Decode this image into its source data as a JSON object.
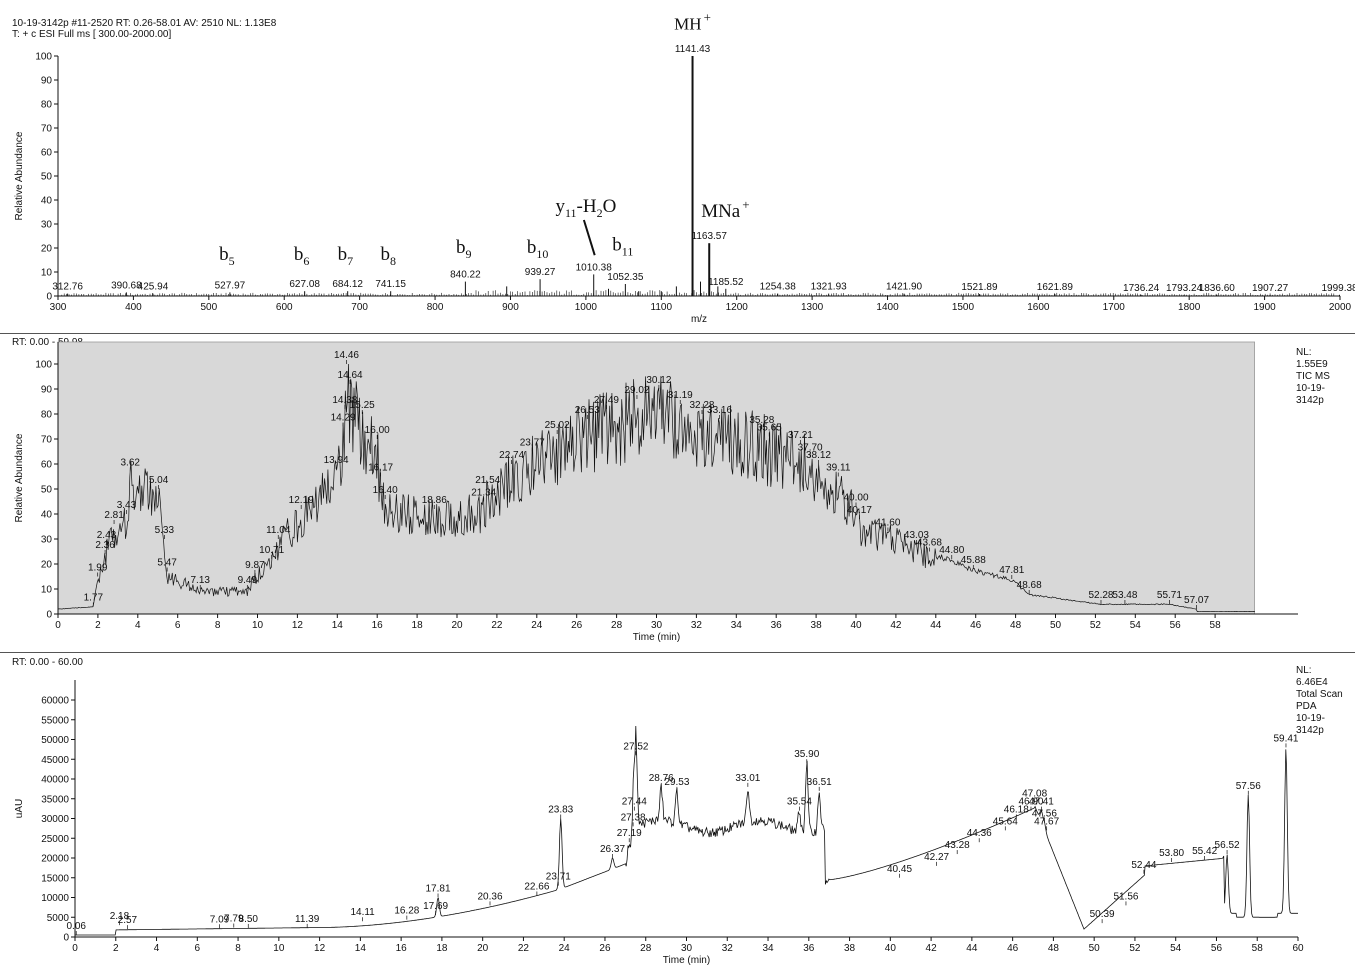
{
  "colors": {
    "ink": "#111111",
    "panel_fill": "#d8d8d8",
    "rule": "#555555"
  },
  "header": {
    "line1": "10-19-3142p #11-2520   RT: 0.26-58.01   AV: 2510   NL: 1.13E8",
    "line2": "T: + c ESI Full ms [ 300.00-2000.00]"
  },
  "panel2_header": "RT: 0.00 - 59.98",
  "panel3_header": "RT: 0.00 - 60.00",
  "chart_data": [
    {
      "type": "line",
      "subtype": "mass-spectrum-sticks",
      "xlabel": "m/z",
      "ylabel": "Relative Abundance",
      "xlim": [
        300,
        2000
      ],
      "ylim": [
        0,
        100
      ],
      "xticks": [
        300,
        400,
        500,
        600,
        700,
        800,
        900,
        1000,
        1100,
        1200,
        1300,
        1400,
        1500,
        1600,
        1700,
        1800,
        1900,
        2000
      ],
      "yticks": [
        0,
        10,
        20,
        30,
        40,
        50,
        60,
        70,
        80,
        90,
        100
      ],
      "peaks": [
        {
          "mz": 312.76,
          "label": "312.76",
          "y": 1
        },
        {
          "mz": 390.68,
          "label": "390.68",
          "y": 1.5
        },
        {
          "mz": 425.94,
          "label": "425.94",
          "y": 1
        },
        {
          "mz": 527.97,
          "label": "527.97",
          "y": 1.5
        },
        {
          "mz": 627.08,
          "label": "627.08",
          "y": 2
        },
        {
          "mz": 684.12,
          "label": "684.12",
          "y": 2
        },
        {
          "mz": 741.15,
          "label": "741.15",
          "y": 2
        },
        {
          "mz": 840.22,
          "label": "840.22",
          "y": 6
        },
        {
          "mz": 939.27,
          "label": "939.27",
          "y": 7
        },
        {
          "mz": 1010.38,
          "label": "1010.38",
          "y": 9
        },
        {
          "mz": 1052.35,
          "label": "1052.35",
          "y": 5
        },
        {
          "mz": 1141.43,
          "label": "1141.43",
          "y": 100
        },
        {
          "mz": 1163.57,
          "label": "1163.57",
          "y": 22
        },
        {
          "mz": 1185.52,
          "label": "1185.52",
          "y": 3
        },
        {
          "mz": 1254.38,
          "label": "1254.38",
          "y": 1
        },
        {
          "mz": 1321.93,
          "label": "1321.93",
          "y": 1
        },
        {
          "mz": 1421.9,
          "label": "1421.90",
          "y": 1
        },
        {
          "mz": 1521.89,
          "label": "1521.89",
          "y": 0.8
        },
        {
          "mz": 1621.89,
          "label": "1621.89",
          "y": 0.8
        },
        {
          "mz": 1736.24,
          "label": "1736.24",
          "y": 0.5
        },
        {
          "mz": 1793.24,
          "label": "1793.24",
          "y": 0.5
        },
        {
          "mz": 1836.6,
          "label": "1836.60",
          "y": 0.5
        },
        {
          "mz": 1907.27,
          "label": "1907.27",
          "y": 0.5
        },
        {
          "mz": 1999.38,
          "label": "1999.38",
          "y": 0.5
        }
      ],
      "minor_peaks": [
        {
          "mz": 895,
          "y": 4
        },
        {
          "mz": 1030,
          "y": 3
        },
        {
          "mz": 1070,
          "y": 2
        },
        {
          "mz": 1100,
          "y": 2
        },
        {
          "mz": 1120,
          "y": 4
        },
        {
          "mz": 1152,
          "y": 6
        },
        {
          "mz": 1175,
          "y": 4
        }
      ],
      "annotations": [
        {
          "base": "MH",
          "sub": "",
          "sup": "+",
          "mz": 1141.43,
          "y": 111
        },
        {
          "base": "MNa",
          "sub": "",
          "sup": "+",
          "mz": 1185,
          "y": 33
        },
        {
          "base": "b",
          "sub": "5",
          "sup": "",
          "mz": 524,
          "y": 15
        },
        {
          "base": "b",
          "sub": "6",
          "sup": "",
          "mz": 623,
          "y": 15
        },
        {
          "base": "b",
          "sub": "7",
          "sup": "",
          "mz": 681,
          "y": 15
        },
        {
          "base": "b",
          "sub": "8",
          "sup": "",
          "mz": 738,
          "y": 15
        },
        {
          "base": "b",
          "sub": "9",
          "sup": "",
          "mz": 838,
          "y": 18
        },
        {
          "base": "b",
          "sub": "10",
          "sup": "",
          "mz": 936,
          "y": 18
        },
        {
          "base": "b",
          "sub": "11",
          "sup": "",
          "mz": 1049,
          "y": 19
        },
        {
          "base": "y",
          "sub": "11",
          "sup": "",
          "tail": "-H",
          "sub2": "2",
          "tail2": "O",
          "mz": 1000,
          "y": 35
        }
      ]
    },
    {
      "type": "line",
      "subtype": "chromatogram",
      "xlabel": "Time (min)",
      "ylabel": "Relative Abundance",
      "xlim": [
        0,
        60
      ],
      "ylim": [
        0,
        100
      ],
      "xticks": [
        0,
        2,
        4,
        6,
        8,
        10,
        12,
        14,
        16,
        18,
        20,
        22,
        24,
        26,
        28,
        30,
        32,
        34,
        36,
        38,
        40,
        42,
        44,
        46,
        48,
        50,
        52,
        54,
        56,
        58
      ],
      "yticks": [
        0,
        10,
        20,
        30,
        40,
        50,
        60,
        70,
        80,
        90,
        100
      ],
      "shaded_range": [
        0.0,
        59.98
      ],
      "legend": [
        "NL:",
        "1.55E9",
        "TIC  MS",
        "10-19-",
        "3142p"
      ],
      "peaks": [
        {
          "t": 1.77,
          "y": 3
        },
        {
          "t": 1.99,
          "y": 15
        },
        {
          "t": 2.36,
          "y": 24
        },
        {
          "t": 2.43,
          "y": 28
        },
        {
          "t": 2.81,
          "y": 36
        },
        {
          "t": 3.43,
          "y": 40
        },
        {
          "t": 3.62,
          "y": 57
        },
        {
          "t": 5.04,
          "y": 50
        },
        {
          "t": 5.33,
          "y": 30
        },
        {
          "t": 5.47,
          "y": 17
        },
        {
          "t": 7.13,
          "y": 10
        },
        {
          "t": 9.49,
          "y": 10
        },
        {
          "t": 9.87,
          "y": 16
        },
        {
          "t": 10.71,
          "y": 22
        },
        {
          "t": 11.04,
          "y": 30
        },
        {
          "t": 12.19,
          "y": 42
        },
        {
          "t": 13.94,
          "y": 58
        },
        {
          "t": 14.29,
          "y": 75
        },
        {
          "t": 14.38,
          "y": 82
        },
        {
          "t": 14.46,
          "y": 100
        },
        {
          "t": 14.64,
          "y": 92
        },
        {
          "t": 15.25,
          "y": 80
        },
        {
          "t": 16.0,
          "y": 70
        },
        {
          "t": 16.17,
          "y": 55
        },
        {
          "t": 16.4,
          "y": 46
        },
        {
          "t": 18.86,
          "y": 42
        },
        {
          "t": 21.34,
          "y": 45
        },
        {
          "t": 21.54,
          "y": 50
        },
        {
          "t": 22.74,
          "y": 60
        },
        {
          "t": 23.77,
          "y": 65
        },
        {
          "t": 25.02,
          "y": 72
        },
        {
          "t": 26.53,
          "y": 78
        },
        {
          "t": 27.49,
          "y": 82
        },
        {
          "t": 29.02,
          "y": 86
        },
        {
          "t": 30.12,
          "y": 90
        },
        {
          "t": 31.19,
          "y": 84
        },
        {
          "t": 32.28,
          "y": 80
        },
        {
          "t": 33.16,
          "y": 78
        },
        {
          "t": 35.28,
          "y": 74
        },
        {
          "t": 35.65,
          "y": 71
        },
        {
          "t": 37.21,
          "y": 68
        },
        {
          "t": 37.7,
          "y": 63
        },
        {
          "t": 38.12,
          "y": 60
        },
        {
          "t": 39.11,
          "y": 55
        },
        {
          "t": 40.0,
          "y": 43
        },
        {
          "t": 40.17,
          "y": 38
        },
        {
          "t": 41.6,
          "y": 33
        },
        {
          "t": 43.03,
          "y": 28
        },
        {
          "t": 43.68,
          "y": 25
        },
        {
          "t": 44.8,
          "y": 22
        },
        {
          "t": 45.88,
          "y": 18
        },
        {
          "t": 47.81,
          "y": 14
        },
        {
          "t": 48.68,
          "y": 8
        },
        {
          "t": 52.28,
          "y": 4
        },
        {
          "t": 53.48,
          "y": 4
        },
        {
          "t": 55.71,
          "y": 4
        },
        {
          "t": 57.07,
          "y": 2
        }
      ],
      "label_texts": [
        "1.77",
        "1.99",
        "2.36",
        "2.43",
        "2.81",
        "3.43",
        "3.62",
        "5.04",
        "5.33",
        "5.47",
        "7.13",
        "9.49",
        "9.87",
        "10.71",
        "11.04",
        "12.19",
        "13.94",
        "14.29",
        "14.38",
        "14.46",
        "14.64",
        "15.25",
        "16.00",
        "16.17",
        "16.40",
        "18.86",
        "21.34",
        "21.54",
        "22.74",
        "23.77",
        "25.02",
        "26.53",
        "27.49",
        "29.02",
        "30.12",
        "31.19",
        "32.28",
        "33.16",
        "35.28",
        "35.65",
        "37.21",
        "37.70",
        "38.12",
        "39.11",
        "40.00",
        "40.17",
        "41.60",
        "43.03",
        "43.68",
        "44.80",
        "45.88",
        "47.81",
        "48.68",
        "52.28",
        "53.48",
        "55.71",
        "57.07"
      ]
    },
    {
      "type": "line",
      "subtype": "uv-chromatogram",
      "xlabel": "Time (min)",
      "ylabel": "uAU",
      "xlim": [
        0,
        60
      ],
      "ylim": [
        0,
        65000
      ],
      "xticks": [
        0,
        2,
        4,
        6,
        8,
        10,
        12,
        14,
        16,
        18,
        20,
        22,
        24,
        26,
        28,
        30,
        32,
        34,
        36,
        38,
        40,
        42,
        44,
        46,
        48,
        50,
        52,
        54,
        56,
        58,
        60
      ],
      "yticks": [
        0,
        5000,
        10000,
        15000,
        20000,
        25000,
        30000,
        35000,
        40000,
        45000,
        50000,
        55000,
        60000
      ],
      "legend": [
        "NL:",
        "6.46E4",
        "Total Scan",
        "PDA",
        "10-19-",
        "3142p"
      ],
      "peaks": [
        {
          "t": 0.06,
          "y": 500
        },
        {
          "t": 2.18,
          "y": 3000
        },
        {
          "t": 2.57,
          "y": 2000
        },
        {
          "t": 7.09,
          "y": 2200
        },
        {
          "t": 7.79,
          "y": 2400
        },
        {
          "t": 8.5,
          "y": 2300
        },
        {
          "t": 11.39,
          "y": 2300
        },
        {
          "t": 14.11,
          "y": 4000
        },
        {
          "t": 16.28,
          "y": 4400
        },
        {
          "t": 17.69,
          "y": 5600
        },
        {
          "t": 17.81,
          "y": 10000
        },
        {
          "t": 20.36,
          "y": 8000
        },
        {
          "t": 22.66,
          "y": 10500
        },
        {
          "t": 23.71,
          "y": 13000
        },
        {
          "t": 23.83,
          "y": 30000
        },
        {
          "t": 26.37,
          "y": 20000
        },
        {
          "t": 27.19,
          "y": 24000
        },
        {
          "t": 27.38,
          "y": 28000
        },
        {
          "t": 27.44,
          "y": 32000
        },
        {
          "t": 27.52,
          "y": 46000
        },
        {
          "t": 28.76,
          "y": 38000
        },
        {
          "t": 29.53,
          "y": 37000
        },
        {
          "t": 33.01,
          "y": 38000
        },
        {
          "t": 35.54,
          "y": 32000
        },
        {
          "t": 35.9,
          "y": 44000
        },
        {
          "t": 36.51,
          "y": 37000
        },
        {
          "t": 40.45,
          "y": 15000
        },
        {
          "t": 42.27,
          "y": 18000
        },
        {
          "t": 43.28,
          "y": 21000
        },
        {
          "t": 44.36,
          "y": 24000
        },
        {
          "t": 45.64,
          "y": 27000
        },
        {
          "t": 46.18,
          "y": 30000
        },
        {
          "t": 46.9,
          "y": 32000
        },
        {
          "t": 47.08,
          "y": 34000
        },
        {
          "t": 47.41,
          "y": 32000
        },
        {
          "t": 47.56,
          "y": 29000
        },
        {
          "t": 47.67,
          "y": 27000
        },
        {
          "t": 50.39,
          "y": 3500
        },
        {
          "t": 51.56,
          "y": 8000
        },
        {
          "t": 52.44,
          "y": 16000
        },
        {
          "t": 53.8,
          "y": 19000
        },
        {
          "t": 55.42,
          "y": 19500
        },
        {
          "t": 56.52,
          "y": 21000
        },
        {
          "t": 57.56,
          "y": 36000
        },
        {
          "t": 59.41,
          "y": 48000
        }
      ],
      "label_texts": [
        "0.06",
        "2.18",
        "2.57",
        "7.09",
        "7.79",
        "8.50",
        "11.39",
        "14.11",
        "16.28",
        "17.69",
        "17.81",
        "20.36",
        "22.66",
        "23.71",
        "23.83",
        "26.37",
        "27.19",
        "27.38",
        "27.44",
        "27.52",
        "28.76",
        "29.53",
        "33.01",
        "35.54",
        "35.90",
        "36.51",
        "40.45",
        "42.27",
        "43.28",
        "44.36",
        "45.64",
        "46.18",
        "46.90",
        "47.08",
        "47.41",
        "47.56",
        "47.67",
        "50.39",
        "51.56",
        "52.44",
        "53.80",
        "55.42",
        "56.52",
        "57.56",
        "59.41"
      ]
    }
  ]
}
